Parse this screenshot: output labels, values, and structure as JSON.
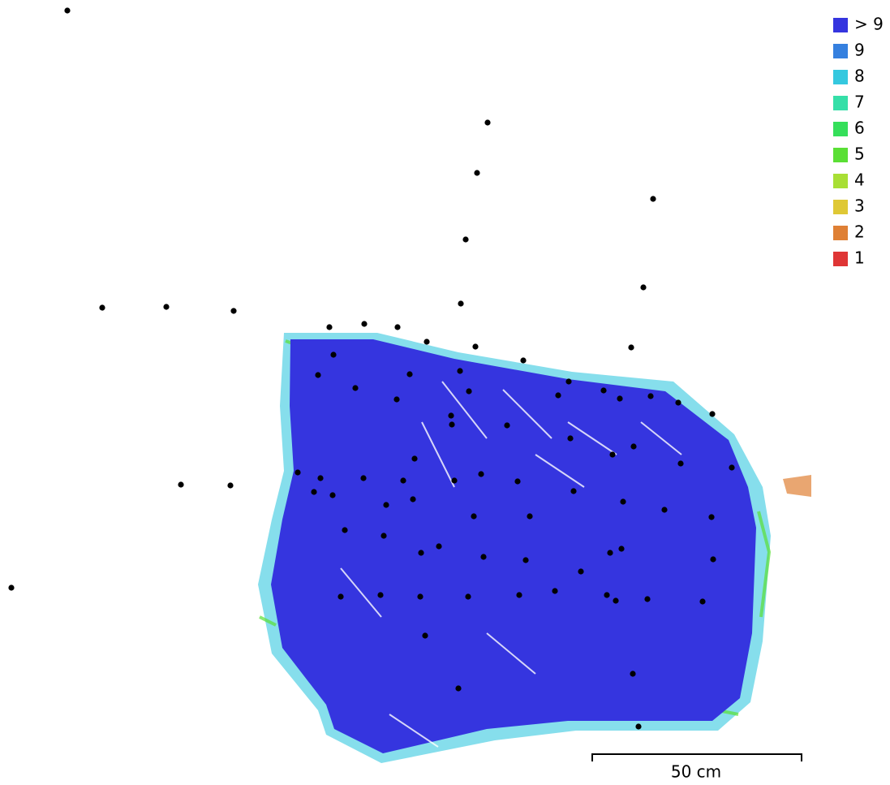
{
  "legend": {
    "items": [
      {
        "label": "> 9",
        "color": "#3535df"
      },
      {
        "label": "9",
        "color": "#3580df"
      },
      {
        "label": "8",
        "color": "#35c8df"
      },
      {
        "label": "7",
        "color": "#35dfa8"
      },
      {
        "label": "6",
        "color": "#35df5a"
      },
      {
        "label": "5",
        "color": "#5adf35"
      },
      {
        "label": "4",
        "color": "#a8df35"
      },
      {
        "label": "3",
        "color": "#dfc835"
      },
      {
        "label": "2",
        "color": "#df8035"
      },
      {
        "label": "1",
        "color": "#df3535"
      }
    ]
  },
  "scale_bar": {
    "label": "50 cm"
  }
}
